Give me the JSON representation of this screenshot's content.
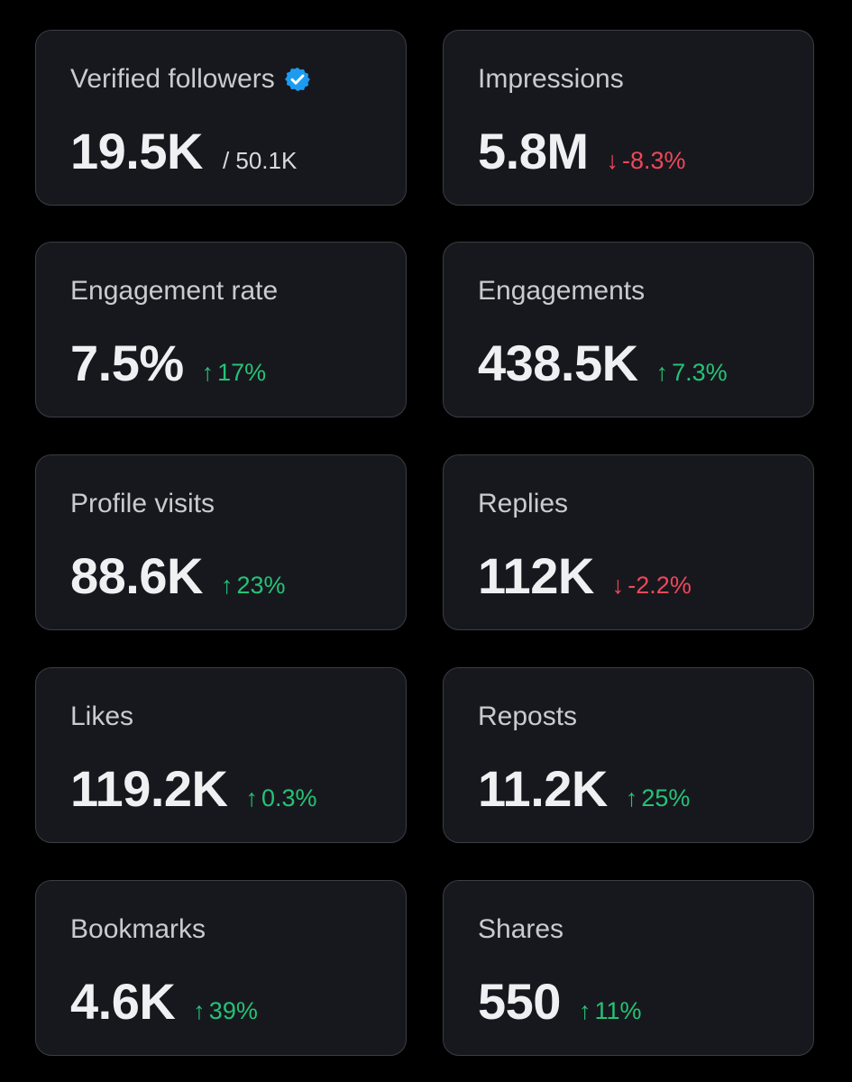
{
  "cards": [
    {
      "label": "Verified followers",
      "value": "19.5K",
      "total": "/ 50.1K",
      "verified_icon": "verified-badge-icon",
      "badge_color": "#1d9bf0"
    },
    {
      "label": "Impressions",
      "value": "5.8M",
      "change": "-8.3%",
      "direction": "down",
      "arrow": "↓"
    },
    {
      "label": "Engagement rate",
      "value": "7.5%",
      "change": "17%",
      "direction": "up",
      "arrow": "↑"
    },
    {
      "label": "Engagements",
      "value": "438.5K",
      "change": "7.3%",
      "direction": "up",
      "arrow": "↑"
    },
    {
      "label": "Profile visits",
      "value": "88.6K",
      "change": "23%",
      "direction": "up",
      "arrow": "↑"
    },
    {
      "label": "Replies",
      "value": "112K",
      "change": "-2.2%",
      "direction": "down",
      "arrow": "↓"
    },
    {
      "label": "Likes",
      "value": "119.2K",
      "change": "0.3%",
      "direction": "up",
      "arrow": "↑"
    },
    {
      "label": "Reposts",
      "value": "11.2K",
      "change": "25%",
      "direction": "up",
      "arrow": "↑"
    },
    {
      "label": "Bookmarks",
      "value": "4.6K",
      "change": "39%",
      "direction": "up",
      "arrow": "↑"
    },
    {
      "label": "Shares",
      "value": "550",
      "change": "11%",
      "direction": "up",
      "arrow": "↑"
    }
  ],
  "colors": {
    "up": "#25c277",
    "down": "#f0475a",
    "card_bg": "#17181d",
    "border": "#3a3d44"
  }
}
